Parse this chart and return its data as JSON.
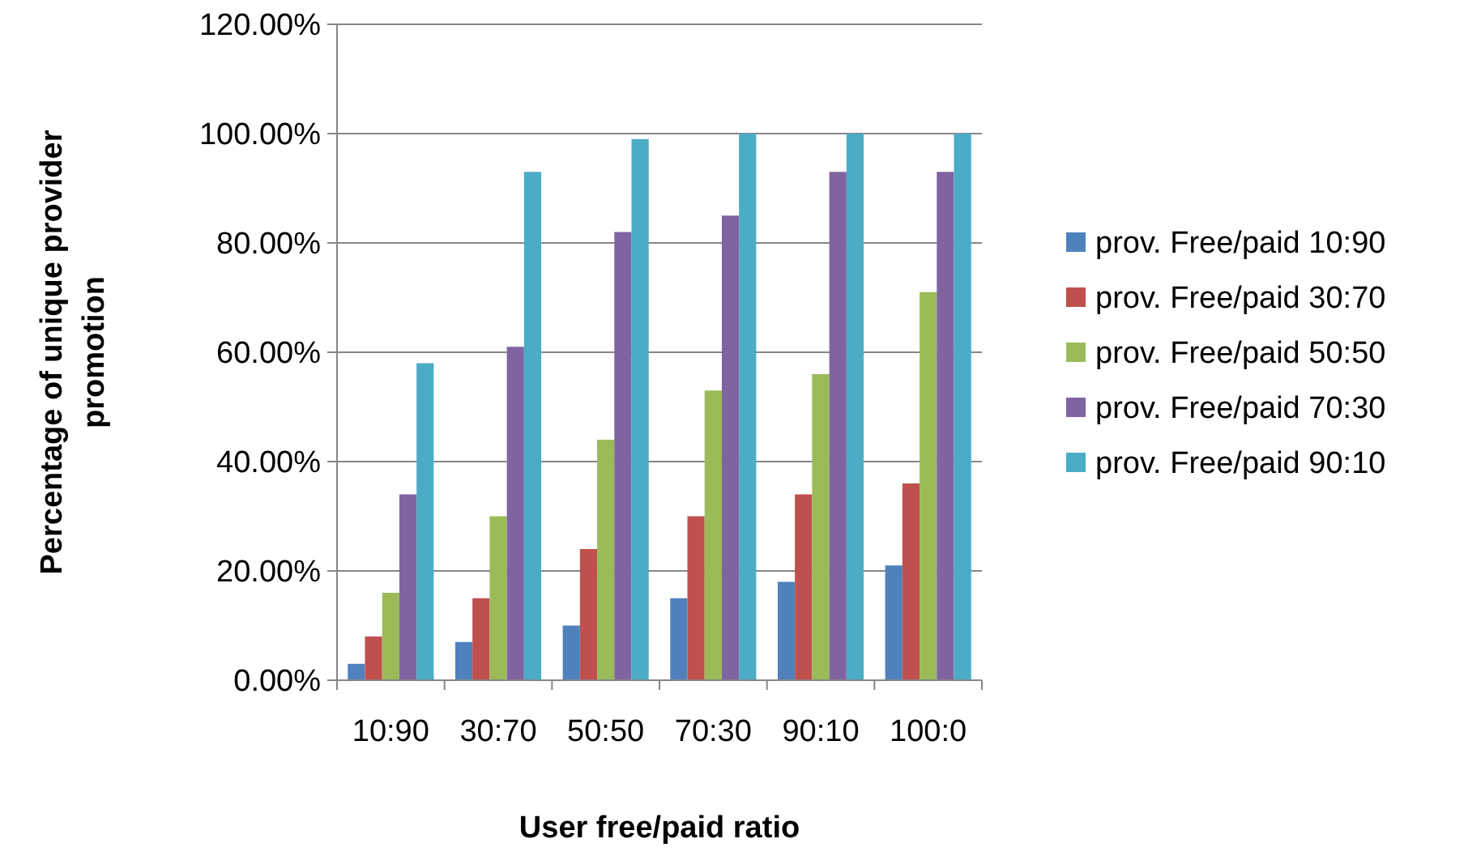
{
  "chart_data": {
    "type": "bar",
    "xlabel": "User free/paid ratio",
    "ylabel": "Percentage of unique provider promotion",
    "categories": [
      "10:90",
      "30:70",
      "50:50",
      "70:30",
      "90:10",
      "100:0"
    ],
    "series": [
      {
        "name": "prov. Free/paid 10:90",
        "color": "#4f81bd",
        "values": [
          3,
          7,
          10,
          15,
          18,
          21
        ]
      },
      {
        "name": "prov. Free/paid 30:70",
        "color": "#c0504d",
        "values": [
          8,
          15,
          24,
          30,
          34,
          36
        ]
      },
      {
        "name": "prov. Free/paid 50:50",
        "color": "#9bbb59",
        "values": [
          16,
          30,
          44,
          53,
          56,
          71
        ]
      },
      {
        "name": "prov. Free/paid 70:30",
        "color": "#8064a2",
        "values": [
          34,
          61,
          82,
          85,
          93,
          93
        ]
      },
      {
        "name": "prov. Free/paid 90:10",
        "color": "#4bacc6",
        "values": [
          58,
          93,
          99,
          100,
          100,
          100
        ]
      }
    ],
    "ylim": [
      0,
      120
    ],
    "yticks": [
      {
        "value": 0,
        "label": "0.00%"
      },
      {
        "value": 20,
        "label": "20.00%"
      },
      {
        "value": 40,
        "label": "40.00%"
      },
      {
        "value": 60,
        "label": "60.00%"
      },
      {
        "value": 80,
        "label": "80.00%"
      },
      {
        "value": 100,
        "label": "100.00%"
      },
      {
        "value": 120,
        "label": "120.00%"
      }
    ],
    "grid": "y",
    "legend": "right"
  }
}
